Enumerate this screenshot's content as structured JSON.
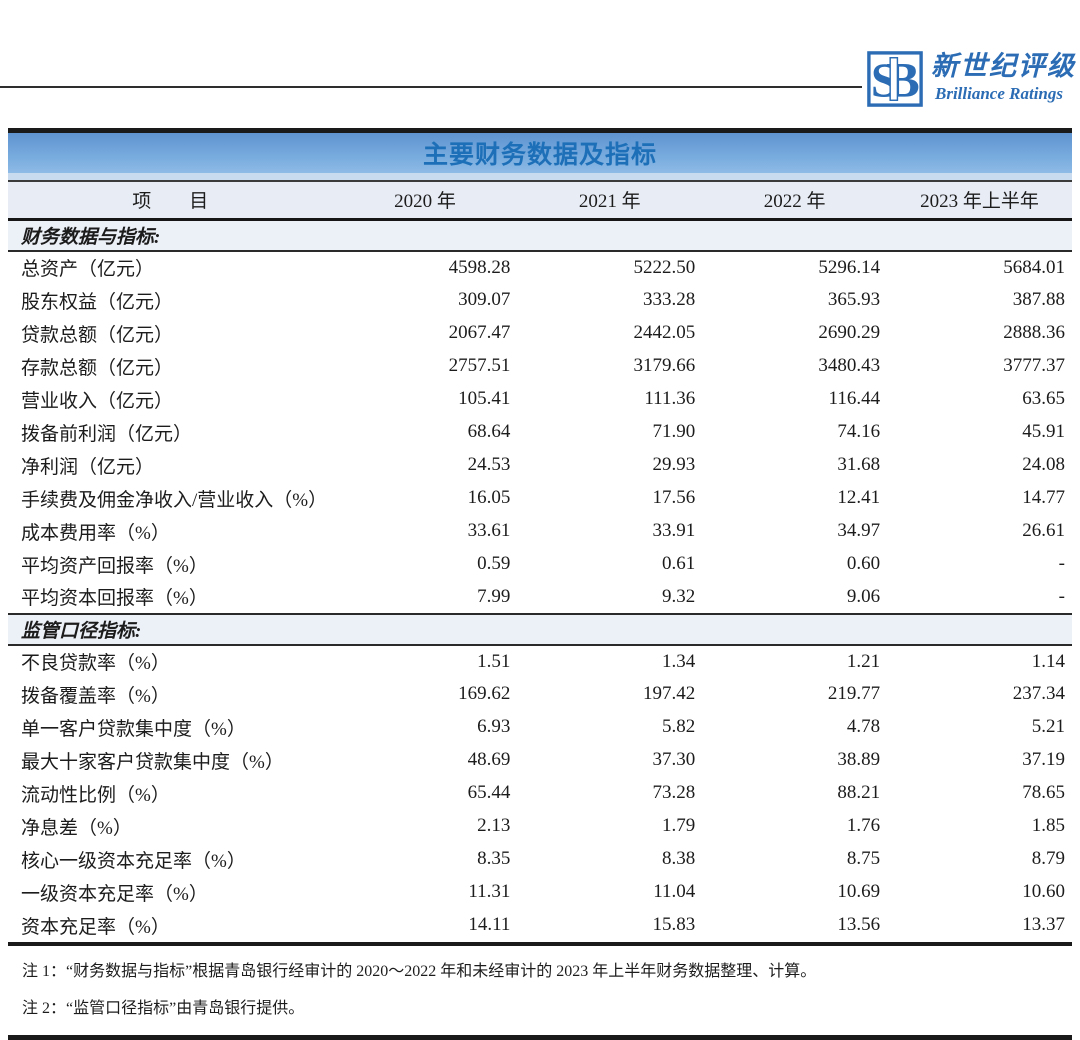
{
  "logo": {
    "monogram": "SB",
    "name_cn": "新世纪评级",
    "name_en": "Brilliance Ratings"
  },
  "table": {
    "title": "主要财务数据及指标",
    "columns": [
      "项　　目",
      "2020 年",
      "2021 年",
      "2022 年",
      "2023 年上半年"
    ],
    "sections": [
      {
        "header": "财务数据与指标:",
        "rows": [
          {
            "label": "总资产（亿元）",
            "values": [
              "4598.28",
              "5222.50",
              "5296.14",
              "5684.01"
            ]
          },
          {
            "label": "股东权益（亿元）",
            "values": [
              "309.07",
              "333.28",
              "365.93",
              "387.88"
            ]
          },
          {
            "label": "贷款总额（亿元）",
            "values": [
              "2067.47",
              "2442.05",
              "2690.29",
              "2888.36"
            ]
          },
          {
            "label": "存款总额（亿元）",
            "values": [
              "2757.51",
              "3179.66",
              "3480.43",
              "3777.37"
            ]
          },
          {
            "label": "营业收入（亿元）",
            "values": [
              "105.41",
              "111.36",
              "116.44",
              "63.65"
            ]
          },
          {
            "label": "拨备前利润（亿元）",
            "values": [
              "68.64",
              "71.90",
              "74.16",
              "45.91"
            ]
          },
          {
            "label": "净利润（亿元）",
            "values": [
              "24.53",
              "29.93",
              "31.68",
              "24.08"
            ]
          },
          {
            "label": "手续费及佣金净收入/营业收入（%）",
            "values": [
              "16.05",
              "17.56",
              "12.41",
              "14.77"
            ]
          },
          {
            "label": "成本费用率（%）",
            "values": [
              "33.61",
              "33.91",
              "34.97",
              "26.61"
            ]
          },
          {
            "label": "平均资产回报率（%）",
            "values": [
              "0.59",
              "0.61",
              "0.60",
              "-"
            ]
          },
          {
            "label": "平均资本回报率（%）",
            "values": [
              "7.99",
              "9.32",
              "9.06",
              "-"
            ]
          }
        ]
      },
      {
        "header": "监管口径指标:",
        "rows": [
          {
            "label": "不良贷款率（%）",
            "values": [
              "1.51",
              "1.34",
              "1.21",
              "1.14"
            ]
          },
          {
            "label": "拨备覆盖率（%）",
            "values": [
              "169.62",
              "197.42",
              "219.77",
              "237.34"
            ]
          },
          {
            "label": "单一客户贷款集中度（%）",
            "values": [
              "6.93",
              "5.82",
              "4.78",
              "5.21"
            ]
          },
          {
            "label": "最大十家客户贷款集中度（%）",
            "values": [
              "48.69",
              "37.30",
              "38.89",
              "37.19"
            ]
          },
          {
            "label": "流动性比例（%）",
            "values": [
              "65.44",
              "73.28",
              "88.21",
              "78.65"
            ]
          },
          {
            "label": "净息差（%）",
            "values": [
              "2.13",
              "1.79",
              "1.76",
              "1.85"
            ]
          },
          {
            "label": "核心一级资本充足率（%）",
            "values": [
              "8.35",
              "8.38",
              "8.75",
              "8.79"
            ]
          },
          {
            "label": "一级资本充足率（%）",
            "values": [
              "11.31",
              "11.04",
              "10.69",
              "10.60"
            ]
          },
          {
            "label": "资本充足率（%）",
            "values": [
              "14.11",
              "15.83",
              "13.56",
              "13.37"
            ]
          }
        ]
      }
    ]
  },
  "notes": [
    "注 1：“财务数据与指标”根据青岛银行经审计的 2020～2022 年和未经审计的 2023 年上半年财务数据整理、计算。",
    "注 2：“监管口径指标”由青岛银行提供。"
  ],
  "colors": {
    "brand_blue": "#2b6cb4",
    "title_text_blue": "#1d70b8",
    "title_band_blue": "#6fa3d8",
    "header_row_bg": "#e8ecf5",
    "section_row_bg": "#ecf0f7",
    "rule_dark": "#1a1a1a"
  }
}
